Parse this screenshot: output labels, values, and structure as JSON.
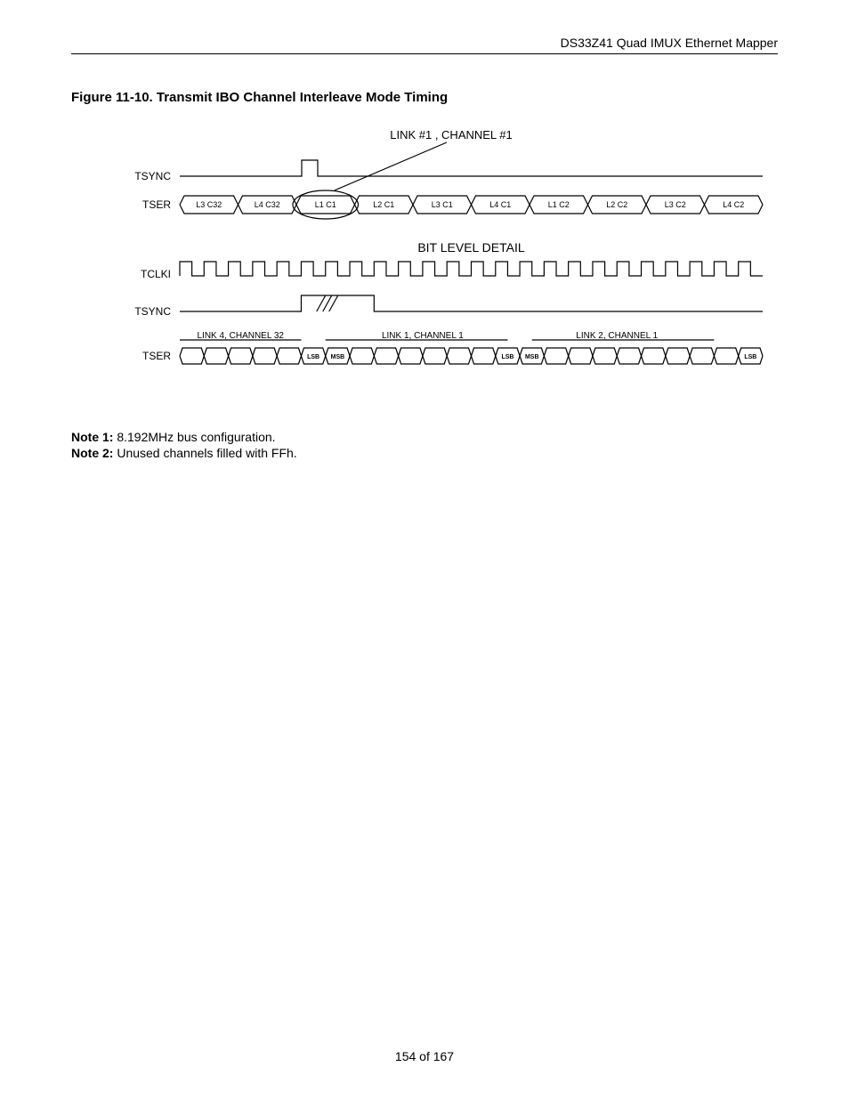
{
  "header": {
    "product": "DS33Z41 Quad IMUX Ethernet Mapper"
  },
  "figure": {
    "title": "Figure 11-10. Transmit IBO Channel Interleave Mode Timing",
    "callout": "LINK #1 , CHANNEL #1",
    "bit_level_title": "BIT LEVEL DETAIL",
    "signals": {
      "tsync": "TSYNC",
      "tser": "TSER",
      "tclki": "TCLKI"
    },
    "upper_tser_cells": [
      "L3 C32",
      "L4 C32",
      "L1 C1",
      "L2 C1",
      "L3 C1",
      "L4 C1",
      "L1 C2",
      "L2 C2",
      "L3 C2",
      "L4 C2"
    ],
    "bit_labels": {
      "link4ch32": "LINK 4, CHANNEL 32",
      "link1ch1": "LINK 1, CHANNEL 1",
      "link2ch1": "LINK 2, CHANNEL 1",
      "lsb": "LSB",
      "msb": "MSB"
    },
    "styling": {
      "stroke": "#000000",
      "stroke_width": 1.2,
      "font_label": 12,
      "font_cell": 9,
      "font_small": 7,
      "font_callout": 13,
      "font_title": 14
    }
  },
  "notes": {
    "n1_label": "Note 1:",
    "n1_text": " 8.192MHz bus configuration.",
    "n2_label": "Note 2:",
    "n2_text": " Unused channels filled with FFh."
  },
  "footer": {
    "page": "154 of 167"
  }
}
